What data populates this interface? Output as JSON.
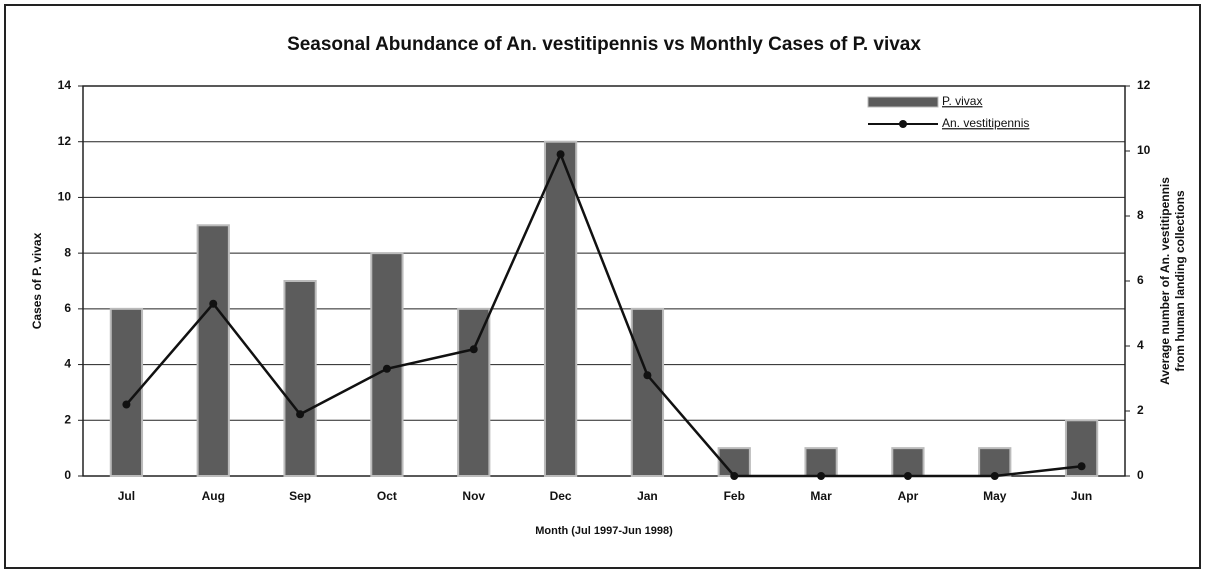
{
  "chart_data": {
    "type": "bar",
    "title": "Seasonal Abundance of An. vestitipennis vs Monthly Cases of P. vivax",
    "x_label": "Month (Jul 1997-Jun 1998)",
    "y_label": "Cases of P. vivax",
    "y2_label": [
      "Average number of An. vestitipennis",
      "from human landing collections"
    ],
    "categories": [
      "Jul",
      "Aug",
      "Sep",
      "Oct",
      "Nov",
      "Dec",
      "Jan",
      "Feb",
      "Mar",
      "Apr",
      "May",
      "Jun"
    ],
    "series": [
      {
        "name": "P. vivax",
        "type": "bar",
        "color": "#5c5c5c",
        "values": [
          6,
          9,
          7,
          8,
          6,
          12,
          6,
          1,
          1,
          1,
          1,
          2
        ]
      },
      {
        "name": "An. vestitipennis",
        "type": "line",
        "axis": "y2",
        "color": "#111111",
        "values": [
          2.2,
          5.3,
          1.9,
          3.3,
          3.9,
          9.9,
          3.1,
          0,
          0,
          0,
          0,
          0.3
        ]
      }
    ],
    "ylim": [
      0,
      14
    ],
    "yticks": [
      0,
      2,
      4,
      6,
      8,
      10,
      12,
      14
    ],
    "y2lim": [
      0,
      12
    ],
    "y2ticks": [
      0,
      2,
      4,
      6,
      8,
      10,
      12
    ],
    "grid": true,
    "legend": "top-right"
  }
}
